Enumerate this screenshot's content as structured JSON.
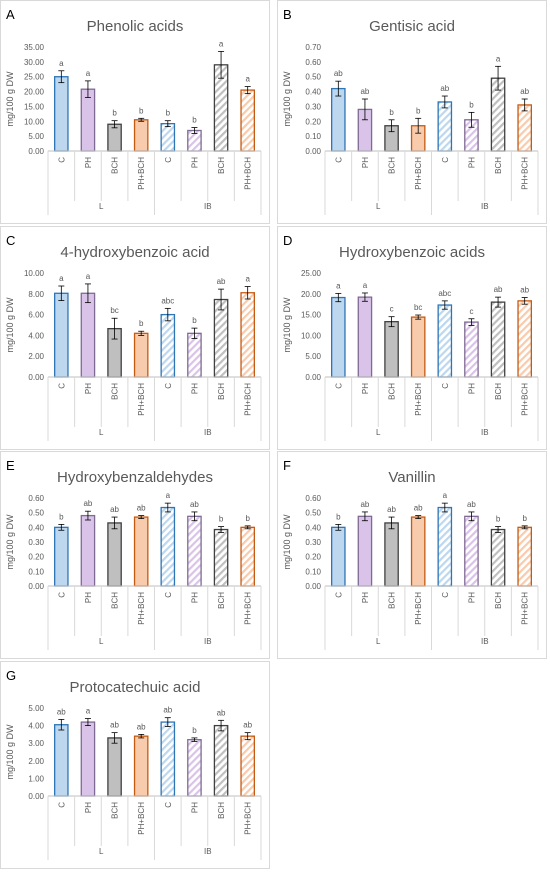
{
  "panels": [
    {
      "letter": "A",
      "chart_data": {
        "type": "bar",
        "title": "Phenolic acids",
        "ylabel": "mg/100 g DW",
        "groups": [
          "L",
          "IB"
        ],
        "categories": [
          "C",
          "PH",
          "BCH",
          "PH+BCH",
          "C",
          "PH",
          "BCH",
          "PH+BCH"
        ],
        "values": [
          25.0,
          20.8,
          9.0,
          10.5,
          9.2,
          6.9,
          29.0,
          20.5
        ],
        "errors": [
          2.0,
          2.8,
          1.2,
          0.5,
          1.0,
          1.0,
          4.5,
          1.2
        ],
        "significance": [
          "a",
          "a",
          "b",
          "b",
          "b",
          "b",
          "a",
          "a"
        ],
        "ylim": [
          0,
          35
        ],
        "yticks": [
          "0.00",
          "5.00",
          "10.00",
          "15.00",
          "20.00",
          "25.00",
          "30.00",
          "35.00"
        ]
      }
    },
    {
      "letter": "B",
      "chart_data": {
        "type": "bar",
        "title": "Gentisic acid",
        "ylabel": "mg/100 g DW",
        "groups": [
          "L",
          "IB"
        ],
        "categories": [
          "C",
          "PH",
          "BCH",
          "PH+BCH",
          "C",
          "PH",
          "BCH",
          "PH+BCH"
        ],
        "values": [
          0.42,
          0.28,
          0.17,
          0.17,
          0.33,
          0.21,
          0.49,
          0.31
        ],
        "errors": [
          0.05,
          0.07,
          0.04,
          0.05,
          0.04,
          0.05,
          0.08,
          0.04
        ],
        "significance": [
          "ab",
          "ab",
          "b",
          "b",
          "ab",
          "b",
          "a",
          "ab"
        ],
        "ylim": [
          0,
          0.7
        ],
        "yticks": [
          "0.00",
          "0.10",
          "0.20",
          "0.30",
          "0.40",
          "0.50",
          "0.60",
          "0.70"
        ]
      }
    },
    {
      "letter": "C",
      "chart_data": {
        "type": "bar",
        "title": "4-hydroxybenzoic acid",
        "ylabel": "mg/100 g DW",
        "groups": [
          "L",
          "IB"
        ],
        "categories": [
          "C",
          "PH",
          "BCH",
          "PH+BCH",
          "C",
          "PH",
          "BCH",
          "PH+BCH"
        ],
        "values": [
          8.05,
          8.05,
          4.65,
          4.2,
          6.0,
          4.2,
          7.45,
          8.1
        ],
        "errors": [
          0.7,
          0.9,
          1.0,
          0.2,
          0.6,
          0.5,
          1.0,
          0.6
        ],
        "significance": [
          "a",
          "a",
          "bc",
          "b",
          "abc",
          "b",
          "ab",
          "a"
        ],
        "ylim": [
          0,
          10
        ],
        "yticks": [
          "0.00",
          "2.00",
          "4.00",
          "6.00",
          "8.00",
          "10.00"
        ]
      }
    },
    {
      "letter": "D",
      "chart_data": {
        "type": "bar",
        "title": "Hydroxybenzoic acids",
        "ylabel": "mg/100 g DW",
        "groups": [
          "L",
          "IB"
        ],
        "categories": [
          "C",
          "PH",
          "BCH",
          "PH+BCH",
          "C",
          "PH",
          "BCH",
          "PH+BCH"
        ],
        "values": [
          19.1,
          19.2,
          13.3,
          14.4,
          17.3,
          13.2,
          18.0,
          18.3
        ],
        "errors": [
          1.0,
          1.0,
          1.2,
          0.5,
          1.0,
          0.8,
          1.2,
          0.8
        ],
        "significance": [
          "a",
          "a",
          "c",
          "bc",
          "abc",
          "c",
          "ab",
          "ab"
        ],
        "ylim": [
          0,
          25
        ],
        "yticks": [
          "0.00",
          "5.00",
          "10.00",
          "15.00",
          "20.00",
          "25.00"
        ]
      }
    },
    {
      "letter": "E",
      "chart_data": {
        "type": "bar",
        "title": "Hydroxybenzaldehydes",
        "ylabel": "mg/100 g DW",
        "groups": [
          "L",
          "IB"
        ],
        "categories": [
          "C",
          "PH",
          "BCH",
          "PH+BCH",
          "C",
          "PH",
          "BCH",
          "PH+BCH"
        ],
        "values": [
          0.4,
          0.48,
          0.43,
          0.47,
          0.535,
          0.475,
          0.385,
          0.4
        ],
        "errors": [
          0.02,
          0.03,
          0.04,
          0.01,
          0.03,
          0.03,
          0.02,
          0.01
        ],
        "significance": [
          "b",
          "ab",
          "ab",
          "ab",
          "a",
          "ab",
          "b",
          "b"
        ],
        "ylim": [
          0,
          0.6
        ],
        "yticks": [
          "0.00",
          "0.10",
          "0.20",
          "0.30",
          "0.40",
          "0.50",
          "0.60"
        ]
      }
    },
    {
      "letter": "F",
      "chart_data": {
        "type": "bar",
        "title": "Vanillin",
        "ylabel": "mg/100 g DW",
        "groups": [
          "L",
          "IB"
        ],
        "categories": [
          "C",
          "PH",
          "BCH",
          "PH+BCH",
          "C",
          "PH",
          "BCH",
          "PH+BCH"
        ],
        "values": [
          0.4,
          0.475,
          0.43,
          0.47,
          0.535,
          0.475,
          0.385,
          0.4
        ],
        "errors": [
          0.02,
          0.03,
          0.04,
          0.01,
          0.03,
          0.03,
          0.02,
          0.01
        ],
        "significance": [
          "b",
          "ab",
          "ab",
          "ab",
          "a",
          "ab",
          "b",
          "b"
        ],
        "ylim": [
          0,
          0.6
        ],
        "yticks": [
          "0.00",
          "0.10",
          "0.20",
          "0.30",
          "0.40",
          "0.50",
          "0.60"
        ]
      }
    },
    {
      "letter": "G",
      "chart_data": {
        "type": "bar",
        "title": "Protocatechuic acid",
        "ylabel": "mg/100 g DW",
        "groups": [
          "L",
          "IB"
        ],
        "categories": [
          "C",
          "PH",
          "BCH",
          "PH+BCH",
          "C",
          "PH",
          "BCH",
          "PH+BCH"
        ],
        "values": [
          4.05,
          4.2,
          3.3,
          3.4,
          4.2,
          3.2,
          4.0,
          3.4
        ],
        "errors": [
          0.3,
          0.2,
          0.3,
          0.1,
          0.25,
          0.1,
          0.3,
          0.2
        ],
        "significance": [
          "ab",
          "a",
          "ab",
          "ab",
          "ab",
          "b",
          "ab",
          "ab"
        ],
        "ylim": [
          0,
          5
        ],
        "yticks": [
          "0.00",
          "1.00",
          "2.00",
          "3.00",
          "4.00",
          "5.00"
        ]
      }
    }
  ],
  "bar_styles": {
    "fills": [
      "#bdd7ee",
      "#d9c3e8",
      "#bfbfbf",
      "#f8cbad"
    ],
    "strokes": [
      "#2e75b6",
      "#7f6a93",
      "#404040",
      "#c55a11"
    ],
    "hatch_groups": [
      "IB"
    ]
  }
}
